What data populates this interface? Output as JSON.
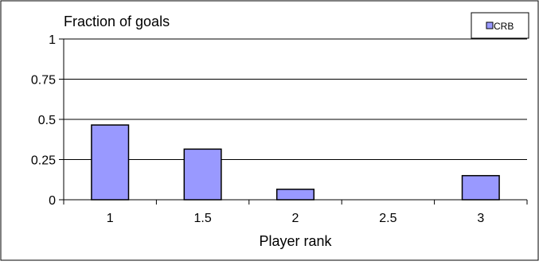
{
  "chart_data": {
    "type": "bar",
    "title": "Fraction of goals",
    "xlabel": "Player rank",
    "ylabel": "",
    "categories": [
      "1",
      "1.5",
      "2",
      "2.5",
      "3"
    ],
    "series": [
      {
        "name": "CRB",
        "values": [
          0.465,
          0.315,
          0.065,
          0,
          0.15
        ],
        "color": "#9999ff"
      }
    ],
    "yticks": [
      "0",
      "0.25",
      "0.5",
      "0.75",
      "1"
    ],
    "ylim": [
      0,
      1
    ],
    "grid": true,
    "legend_position": "top-right"
  }
}
